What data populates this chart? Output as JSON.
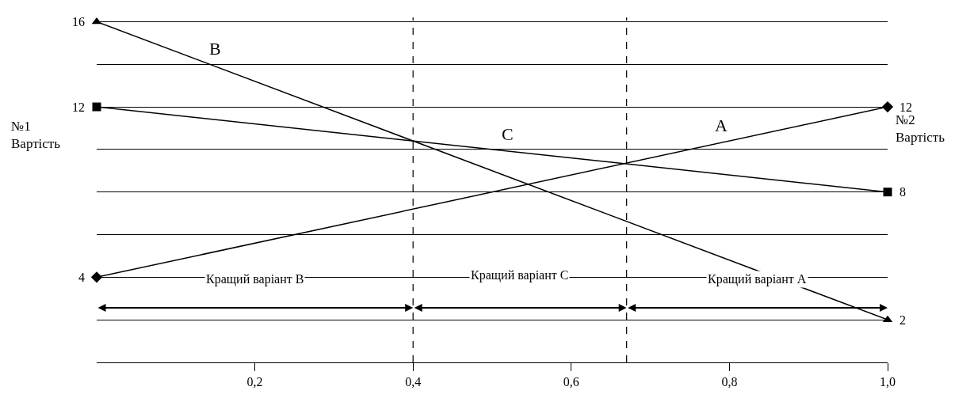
{
  "chart_data": {
    "type": "line",
    "ylabel": "№1\nВартість",
    "y2label": "№2\nВартість",
    "xlim": [
      0,
      1
    ],
    "xticks": [
      {
        "value": 0.2,
        "label": "0,2"
      },
      {
        "value": 0.4,
        "label": "0,4"
      },
      {
        "value": 0.6,
        "label": "0,6"
      },
      {
        "value": 0.8,
        "label": "0,8"
      },
      {
        "value": 1.0,
        "label": "1,0"
      }
    ],
    "ylim": [
      0,
      16.2
    ],
    "yticks": [
      {
        "value": 2,
        "label": null
      },
      4,
      {
        "value": 6,
        "label": null
      },
      {
        "value": 8,
        "label": null
      },
      {
        "value": 10,
        "label": null
      },
      12,
      {
        "value": 14,
        "label": null
      },
      16
    ],
    "y2lim": [
      0,
      16.2
    ],
    "y2ticks": [
      2,
      8,
      12
    ],
    "grid": "y",
    "legend": false,
    "x": [
      0,
      1
    ],
    "series": [
      {
        "name": "A",
        "color": "#000000",
        "values": [
          4,
          12
        ],
        "marker": "diamond"
      },
      {
        "name": "B",
        "color": "#000000",
        "values": [
          16,
          2
        ],
        "marker": "triangle"
      },
      {
        "name": "C",
        "color": "#000000",
        "values": [
          12,
          8
        ],
        "marker": "square"
      }
    ],
    "ref_lines": [
      {
        "axis": "x",
        "value": 0.4,
        "line_style": "dashed"
      },
      {
        "axis": "x",
        "value": 0.67,
        "line_style": "dashed"
      }
    ],
    "annotations": [
      "Кращий варіант B",
      "Кращий варіант C",
      "Кращий варіант A"
    ]
  }
}
